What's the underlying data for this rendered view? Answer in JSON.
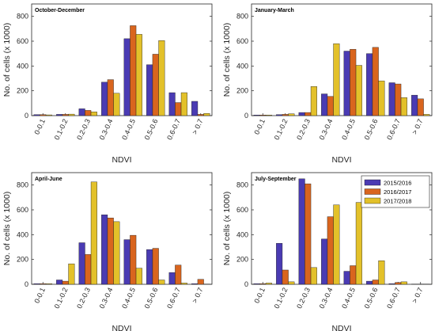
{
  "colors": {
    "2015/2016": "#4a3bb3",
    "2016/2017": "#d9651e",
    "2017/2018": "#e3c12a"
  },
  "chart_data": [
    {
      "type": "bar",
      "title": "October-December",
      "xlabel": "NDVI",
      "ylabel": "No. of cells (x 1000)",
      "categories": [
        "0-0.1",
        "0.1-0.2",
        "0.2-0.3",
        "0.3-0.4",
        "0.4-0.5",
        "0.5-0.6",
        "0.6-0.7",
        "> 0.7"
      ],
      "yticks": [
        0,
        200,
        400,
        600,
        800
      ],
      "ylim": [
        0,
        900
      ],
      "series": [
        {
          "name": "2015/2016",
          "values": [
            8,
            10,
            55,
            270,
            620,
            410,
            185,
            115
          ]
        },
        {
          "name": "2016/2017",
          "values": [
            8,
            10,
            42,
            290,
            725,
            495,
            105,
            10
          ]
        },
        {
          "name": "2017/2018",
          "values": [
            6,
            12,
            30,
            180,
            655,
            605,
            185,
            18
          ]
        }
      ]
    },
    {
      "type": "bar",
      "title": "January-March",
      "xlabel": "NDVI",
      "ylabel": "No. of cells (x 1000)",
      "categories": [
        "0-0.1",
        "0.1-0.2",
        "0.2-0.3",
        "0.3-0.4",
        "0.4-0.5",
        "0.5-0.6",
        "0.6-0.7",
        "> 0.7"
      ],
      "yticks": [
        0,
        200,
        400,
        600,
        800
      ],
      "ylim": [
        0,
        900
      ],
      "series": [
        {
          "name": "2015/2016",
          "values": [
            5,
            8,
            25,
            175,
            520,
            500,
            265,
            165
          ]
        },
        {
          "name": "2016/2017",
          "values": [
            5,
            10,
            25,
            155,
            535,
            550,
            255,
            135
          ]
        },
        {
          "name": "2017/2018",
          "values": [
            5,
            15,
            235,
            580,
            405,
            280,
            145,
            10
          ]
        }
      ]
    },
    {
      "type": "bar",
      "title": "April-June",
      "xlabel": "NDVI",
      "ylabel": "No. of cells (x 1000)",
      "categories": [
        "0-0.1",
        "0.1-0.2",
        "0.2-0.3",
        "0.3-0.4",
        "0.4-0.5",
        "0.5-0.6",
        "0.6-0.7",
        "> 0.7"
      ],
      "yticks": [
        0,
        200,
        400,
        600,
        800
      ],
      "ylim": [
        0,
        900
      ],
      "series": [
        {
          "name": "2015/2016",
          "values": [
            5,
            35,
            335,
            560,
            360,
            280,
            95,
            5
          ]
        },
        {
          "name": "2016/2017",
          "values": [
            5,
            25,
            240,
            535,
            395,
            290,
            155,
            40
          ]
        },
        {
          "name": "2017/2018",
          "values": [
            5,
            165,
            825,
            505,
            130,
            35,
            10,
            2
          ]
        }
      ]
    },
    {
      "type": "bar",
      "title": "July-September",
      "xlabel": "NDVI",
      "ylabel": "No. of cells (x 1000)",
      "categories": [
        "0-0.1",
        "0.1-0.2",
        "0.2-0.3",
        "0.3-0.4",
        "0.4-0.5",
        "0.5-0.6",
        "0.6-0.7",
        "> 0.7"
      ],
      "yticks": [
        0,
        200,
        400,
        600,
        800
      ],
      "ylim": [
        0,
        900
      ],
      "legend": "top-right",
      "series": [
        {
          "name": "2015/2016",
          "values": [
            5,
            330,
            850,
            365,
            105,
            25,
            5,
            2
          ]
        },
        {
          "name": "2016/2017",
          "values": [
            5,
            115,
            810,
            545,
            150,
            35,
            15,
            2
          ]
        },
        {
          "name": "2017/2018",
          "values": [
            10,
            20,
            135,
            640,
            660,
            190,
            20,
            2
          ]
        }
      ]
    }
  ]
}
